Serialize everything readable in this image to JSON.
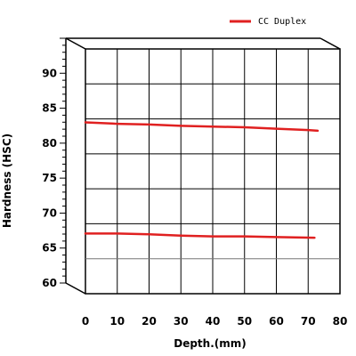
{
  "chart_data": {
    "type": "line",
    "view": "3d-box",
    "xlabel": "Depth.(mm)",
    "ylabel": "Hardness (HSC)",
    "xlim": [
      0,
      80
    ],
    "ylim": [
      60,
      95
    ],
    "xticks": [
      "0",
      "10",
      "20",
      "30",
      "40",
      "50",
      "60",
      "70",
      "80"
    ],
    "yticks": [
      "60",
      "65",
      "70",
      "75",
      "80",
      "85",
      "90"
    ],
    "grid": true,
    "legend_position": "top-right",
    "legend": [
      "CC Duplex"
    ],
    "series": [
      {
        "name": "CC Duplex",
        "color": "#e02020",
        "x": [
          0,
          10,
          20,
          30,
          40,
          50,
          60,
          70,
          73
        ],
        "y": [
          84.5,
          84.3,
          84.2,
          84.0,
          83.9,
          83.8,
          83.6,
          83.4,
          83.3
        ]
      },
      {
        "name": "CC Duplex",
        "color": "#e02020",
        "x": [
          0,
          10,
          20,
          30,
          40,
          50,
          60,
          72
        ],
        "y": [
          68.6,
          68.6,
          68.5,
          68.3,
          68.2,
          68.2,
          68.1,
          68.0
        ]
      }
    ]
  }
}
